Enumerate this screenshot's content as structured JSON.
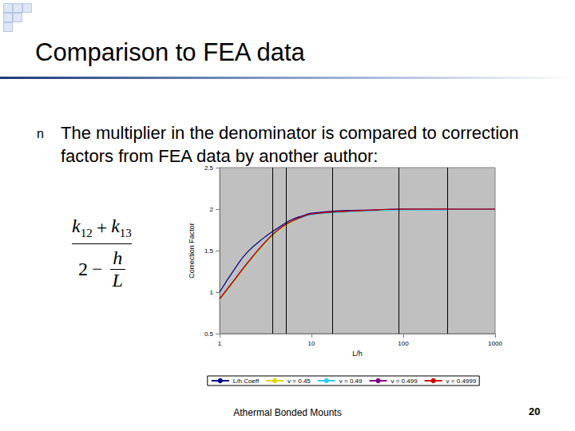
{
  "slide": {
    "title": "Comparison to FEA data",
    "bullet": "n",
    "text": "The multiplier in the denominator is compared to correction factors from FEA data by another author:",
    "formula": {
      "numerator": [
        {
          "symbol": "k",
          "sub": "12"
        },
        "+",
        {
          "symbol": "k",
          "sub": "13"
        }
      ],
      "denominator": [
        "2",
        "−",
        {
          "over": "h",
          "under": "L"
        }
      ]
    },
    "footer": "Athermal Bonded Mounts",
    "page": "20"
  },
  "chart_data": {
    "type": "line",
    "log": "x",
    "grid": false,
    "legend": "bottom",
    "xlabel": "L/h",
    "ylabel": "Correction Factor",
    "xlim": [
      1,
      1000
    ],
    "xticks": [
      1,
      10,
      100,
      1000
    ],
    "ylim": [
      0.5,
      2.5
    ],
    "yticks": [
      0.5,
      1,
      1.5,
      2,
      2.5
    ],
    "reference_lines_x": [
      3.8,
      5.3,
      17,
      90,
      300
    ],
    "series": [
      {
        "name": "L/h Coeff",
        "color": "#000080",
        "x": [
          1,
          1.5,
          2,
          3,
          4,
          5,
          6,
          8,
          10,
          20,
          50,
          100,
          300,
          1000
        ],
        "values": [
          1.0,
          1.3,
          1.48,
          1.65,
          1.75,
          1.82,
          1.87,
          1.92,
          1.95,
          1.98,
          1.99,
          2.0,
          2.0,
          2.0
        ]
      },
      {
        "name": "v = 0.45",
        "color": "#e6d400",
        "x": [
          1,
          1.5,
          2,
          3,
          4,
          5,
          6,
          8,
          10,
          20,
          50,
          100,
          300
        ],
        "values": [
          0.9,
          1.15,
          1.33,
          1.56,
          1.7,
          1.79,
          1.84,
          1.9,
          1.93,
          1.96,
          1.98,
          1.99,
          2.0
        ]
      },
      {
        "name": "v = 0.49",
        "color": "#33ccff",
        "x": [
          1,
          1.5,
          2,
          3,
          4,
          5,
          6,
          8,
          10,
          20,
          50,
          100,
          300
        ],
        "values": [
          0.91,
          1.16,
          1.34,
          1.57,
          1.71,
          1.8,
          1.85,
          1.9,
          1.93,
          1.96,
          1.98,
          1.99,
          1.99
        ]
      },
      {
        "name": "v = 0.499",
        "color": "#800080",
        "x": [
          1,
          1.5,
          2,
          3,
          4,
          5,
          6,
          8,
          10,
          20,
          50,
          100,
          300
        ],
        "values": [
          0.92,
          1.17,
          1.35,
          1.58,
          1.72,
          1.8,
          1.85,
          1.91,
          1.94,
          1.97,
          1.99,
          2.0,
          2.0
        ]
      },
      {
        "name": "v = 0.4999",
        "color": "#cc0000",
        "x": [
          1,
          1.5,
          2,
          3,
          4,
          5,
          6,
          8,
          10,
          20,
          50,
          100,
          300,
          1000
        ],
        "values": [
          0.92,
          1.17,
          1.35,
          1.58,
          1.72,
          1.8,
          1.85,
          1.91,
          1.94,
          1.97,
          1.99,
          2.0,
          2.0,
          2.0
        ]
      }
    ]
  }
}
